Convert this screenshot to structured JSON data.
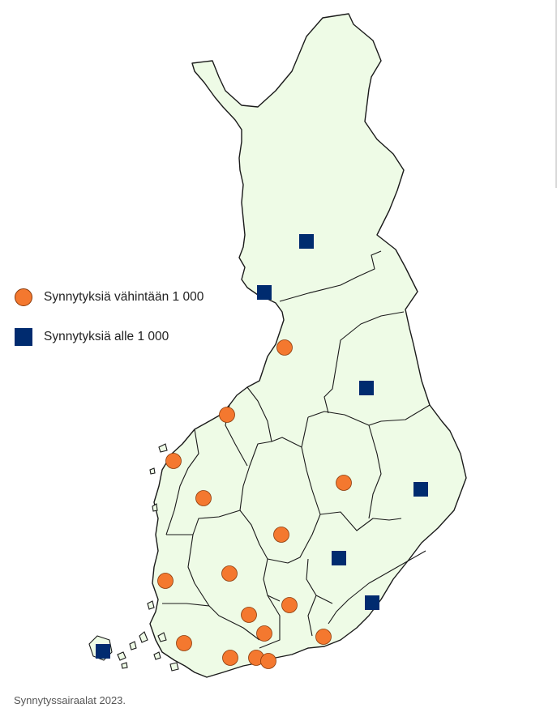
{
  "legend": {
    "large": {
      "label": "Synnytyksiä vähintään 1 000",
      "icon": "orange-circle",
      "color": "#f4782f"
    },
    "small": {
      "label": "Synnytyksiä alle 1 000",
      "icon": "navy-square",
      "color": "#002b6f"
    }
  },
  "map": {
    "land_color": "#eefbe6",
    "border_color": "#1a1a1a"
  },
  "caption": "Synnytyssairaalat 2023."
}
